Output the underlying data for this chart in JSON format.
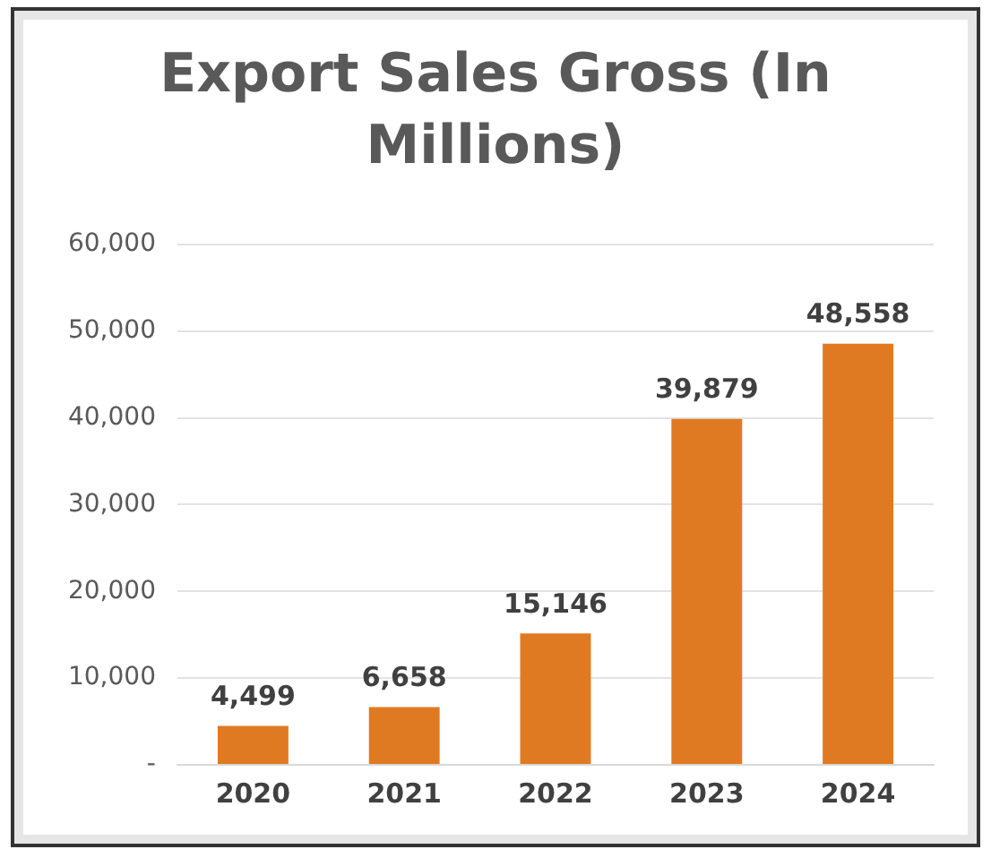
{
  "chart_data": {
    "type": "bar",
    "title": "Export Sales Gross (In Millions)",
    "categories": [
      "2020",
      "2021",
      "2022",
      "2023",
      "2024"
    ],
    "values": [
      4499,
      6658,
      15146,
      39879,
      48558
    ],
    "value_labels": [
      "4,499",
      "6,658",
      "15,146",
      "39,879",
      "48,558"
    ],
    "color": "#e07a22",
    "ylim": [
      0,
      60000
    ],
    "yticks": [
      {
        "value": 0,
        "label": "-"
      },
      {
        "value": 10000,
        "label": "10,000"
      },
      {
        "value": 20000,
        "label": "20,000"
      },
      {
        "value": 30000,
        "label": "30,000"
      },
      {
        "value": 40000,
        "label": "40,000"
      },
      {
        "value": 50000,
        "label": "50,000"
      },
      {
        "value": 60000,
        "label": "60,000"
      }
    ],
    "grid": "y",
    "legend": false
  }
}
